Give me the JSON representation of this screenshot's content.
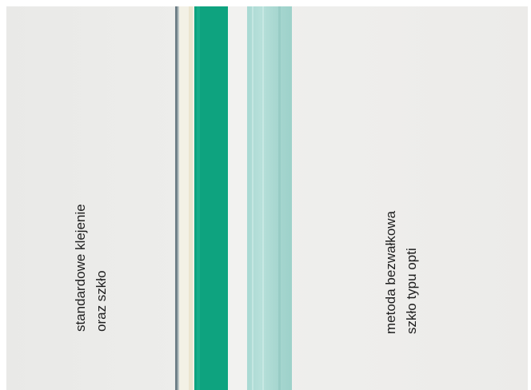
{
  "labels": {
    "left": [
      "standardowe klejenie",
      "oraz szkło"
    ],
    "right": [
      "metoda bezwałkowa",
      "szkło typu opti"
    ]
  }
}
